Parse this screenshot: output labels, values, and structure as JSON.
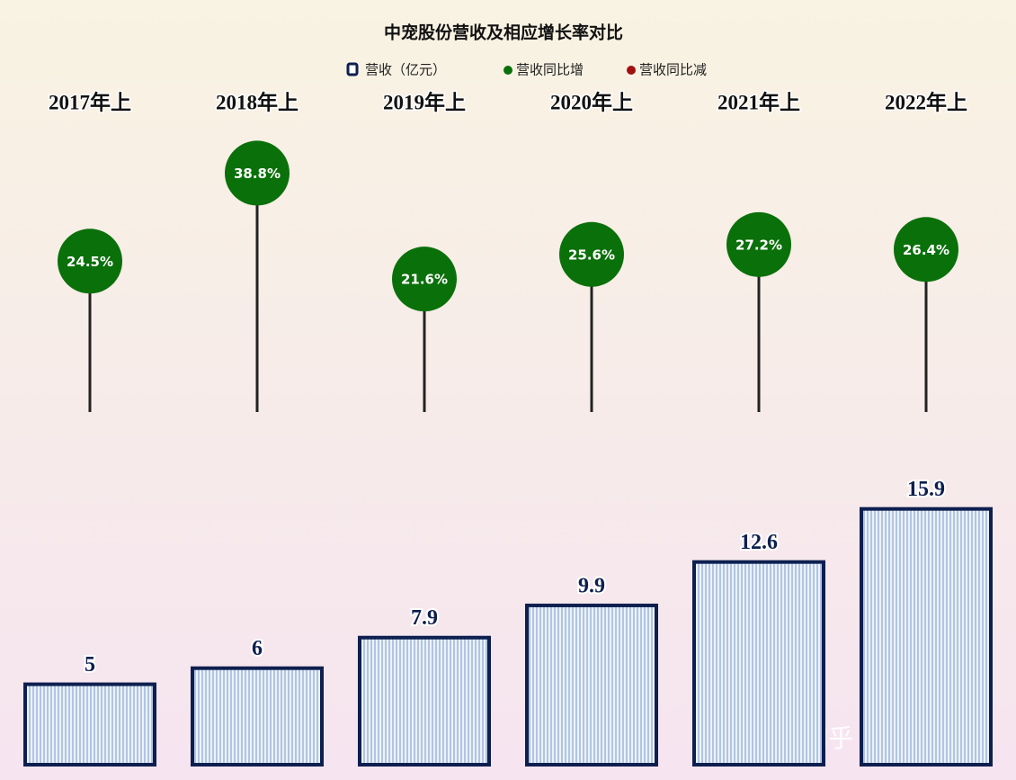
{
  "chart_data": {
    "type": "bar",
    "title": "中宠股份营收及相应增长率对比",
    "categories": [
      "2017年上",
      "2018年上",
      "2019年上",
      "2020年上",
      "2021年上",
      "2022年上"
    ],
    "series": [
      {
        "name": "营收（亿元）",
        "color": "#0d1f4f",
        "values": [
          5,
          6,
          7.9,
          9.9,
          12.6,
          15.9
        ]
      },
      {
        "name": "营收同比增",
        "color": "#0a700a",
        "negative_name": "营收同比减",
        "negative_color": "#a01010",
        "axis": "y2",
        "type": "lollipop",
        "values": [
          24.5,
          38.8,
          21.6,
          25.6,
          27.2,
          26.4
        ],
        "value_labels": [
          "24.5%",
          "38.8%",
          "21.6%",
          "25.6%",
          "27.2%",
          "26.4%"
        ]
      }
    ],
    "ylim": [
      0,
      17
    ],
    "y2lim": [
      0,
      45
    ],
    "watermark": "知乎 @咨国士鱼"
  }
}
